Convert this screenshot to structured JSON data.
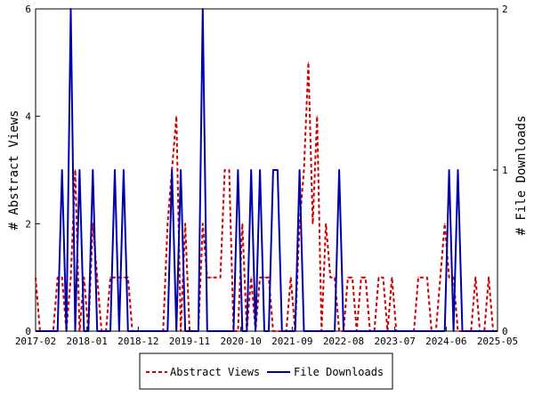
{
  "chart_data": {
    "type": "line",
    "title": "",
    "xlabel": "",
    "ylabel": "# Abstract Views",
    "ylabel_right": "# File Downloads",
    "x_tick_labels": [
      "2017-02",
      "2018-01",
      "2018-12",
      "2019-11",
      "2020-10",
      "2021-09",
      "2022-08",
      "2023-07",
      "2024-06",
      "2025-05"
    ],
    "xlim": [
      0,
      105
    ],
    "ylim": [
      0,
      6
    ],
    "y_ticks": [
      0,
      2,
      4,
      6
    ],
    "ylim_right": [
      0,
      2
    ],
    "y_ticks_right": [
      0,
      1,
      2
    ],
    "legend_position": "bottom-center",
    "grid": false,
    "series": [
      {
        "name": "Abstract Views",
        "axis": "left",
        "color": "#cc0000",
        "style": "dashed",
        "x": [
          0,
          1,
          2,
          3,
          4,
          5,
          6,
          7,
          8,
          9,
          10,
          11,
          12,
          13,
          14,
          15,
          16,
          17,
          18,
          19,
          20,
          21,
          22,
          23,
          24,
          25,
          26,
          27,
          28,
          29,
          30,
          31,
          32,
          33,
          34,
          35,
          36,
          37,
          38,
          39,
          40,
          41,
          42,
          43,
          44,
          45,
          46,
          47,
          48,
          49,
          50,
          51,
          52,
          53,
          54,
          55,
          56,
          57,
          58,
          59,
          60,
          61,
          62,
          63,
          64,
          65,
          66,
          67,
          68,
          69,
          70,
          71,
          72,
          73,
          74,
          75,
          76,
          77,
          78,
          79,
          80,
          81,
          82,
          83,
          84,
          85,
          86,
          87,
          88,
          89,
          90,
          91,
          92,
          93,
          94,
          95,
          96,
          97,
          98,
          99,
          100,
          101,
          102,
          103,
          104,
          105
        ],
        "values": [
          1,
          0,
          0,
          0,
          0,
          1,
          1,
          0,
          1,
          3,
          0,
          1,
          0,
          2,
          1,
          0,
          0,
          1,
          1,
          1,
          1,
          1,
          0,
          0,
          0,
          0,
          0,
          0,
          0,
          0,
          2,
          3,
          4,
          0,
          2,
          0,
          0,
          0,
          2,
          1,
          1,
          1,
          1,
          3,
          3,
          0,
          0,
          2,
          0,
          1,
          0,
          1,
          1,
          1,
          0,
          0,
          0,
          0,
          1,
          0,
          2,
          3,
          5,
          2,
          4,
          0,
          2,
          1,
          1,
          0,
          0,
          1,
          1,
          0,
          1,
          1,
          0,
          0,
          1,
          1,
          0,
          1,
          0,
          0,
          0,
          0,
          0,
          1,
          1,
          1,
          0,
          0,
          1,
          2,
          1,
          1,
          0,
          0,
          0,
          0,
          1,
          0,
          0,
          1,
          0,
          0
        ],
        "peak_note": ""
      },
      {
        "name": "File Downloads",
        "axis": "right",
        "color": "#0000aa",
        "style": "solid",
        "x": [
          0,
          1,
          2,
          3,
          4,
          5,
          6,
          7,
          8,
          9,
          10,
          11,
          12,
          13,
          14,
          15,
          16,
          17,
          18,
          19,
          20,
          21,
          22,
          23,
          24,
          25,
          26,
          27,
          28,
          29,
          30,
          31,
          32,
          33,
          34,
          35,
          36,
          37,
          38,
          39,
          40,
          41,
          42,
          43,
          44,
          45,
          46,
          47,
          48,
          49,
          50,
          51,
          52,
          53,
          54,
          55,
          56,
          57,
          58,
          59,
          60,
          61,
          62,
          63,
          64,
          65,
          66,
          67,
          68,
          69,
          70,
          71,
          72,
          73,
          74,
          75,
          76,
          77,
          78,
          79,
          80,
          81,
          82,
          83,
          84,
          85,
          86,
          87,
          88,
          89,
          90,
          91,
          92,
          93,
          94,
          95,
          96,
          97,
          98,
          99,
          100,
          101,
          102,
          103,
          104,
          105
        ],
        "values": [
          0,
          0,
          0,
          0,
          0,
          0,
          1,
          0,
          2,
          0,
          1,
          0,
          0,
          1,
          0,
          0,
          0,
          0,
          1,
          0,
          1,
          0,
          0,
          0,
          0,
          0,
          0,
          0,
          0,
          0,
          0,
          1,
          0,
          1,
          0,
          0,
          0,
          0,
          2,
          0,
          0,
          0,
          0,
          0,
          0,
          0,
          1,
          0,
          0,
          1,
          0,
          1,
          0,
          0,
          1,
          1,
          0,
          0,
          0,
          0,
          1,
          0,
          0,
          0,
          0,
          0,
          0,
          0,
          0,
          1,
          0,
          0,
          0,
          0,
          0,
          0,
          0,
          0,
          0,
          0,
          0,
          0,
          0,
          0,
          0,
          0,
          0,
          0,
          0,
          0,
          0,
          0,
          0,
          0,
          1,
          0,
          1,
          0,
          0,
          0,
          0,
          0,
          0,
          0,
          0,
          0
        ]
      }
    ]
  }
}
